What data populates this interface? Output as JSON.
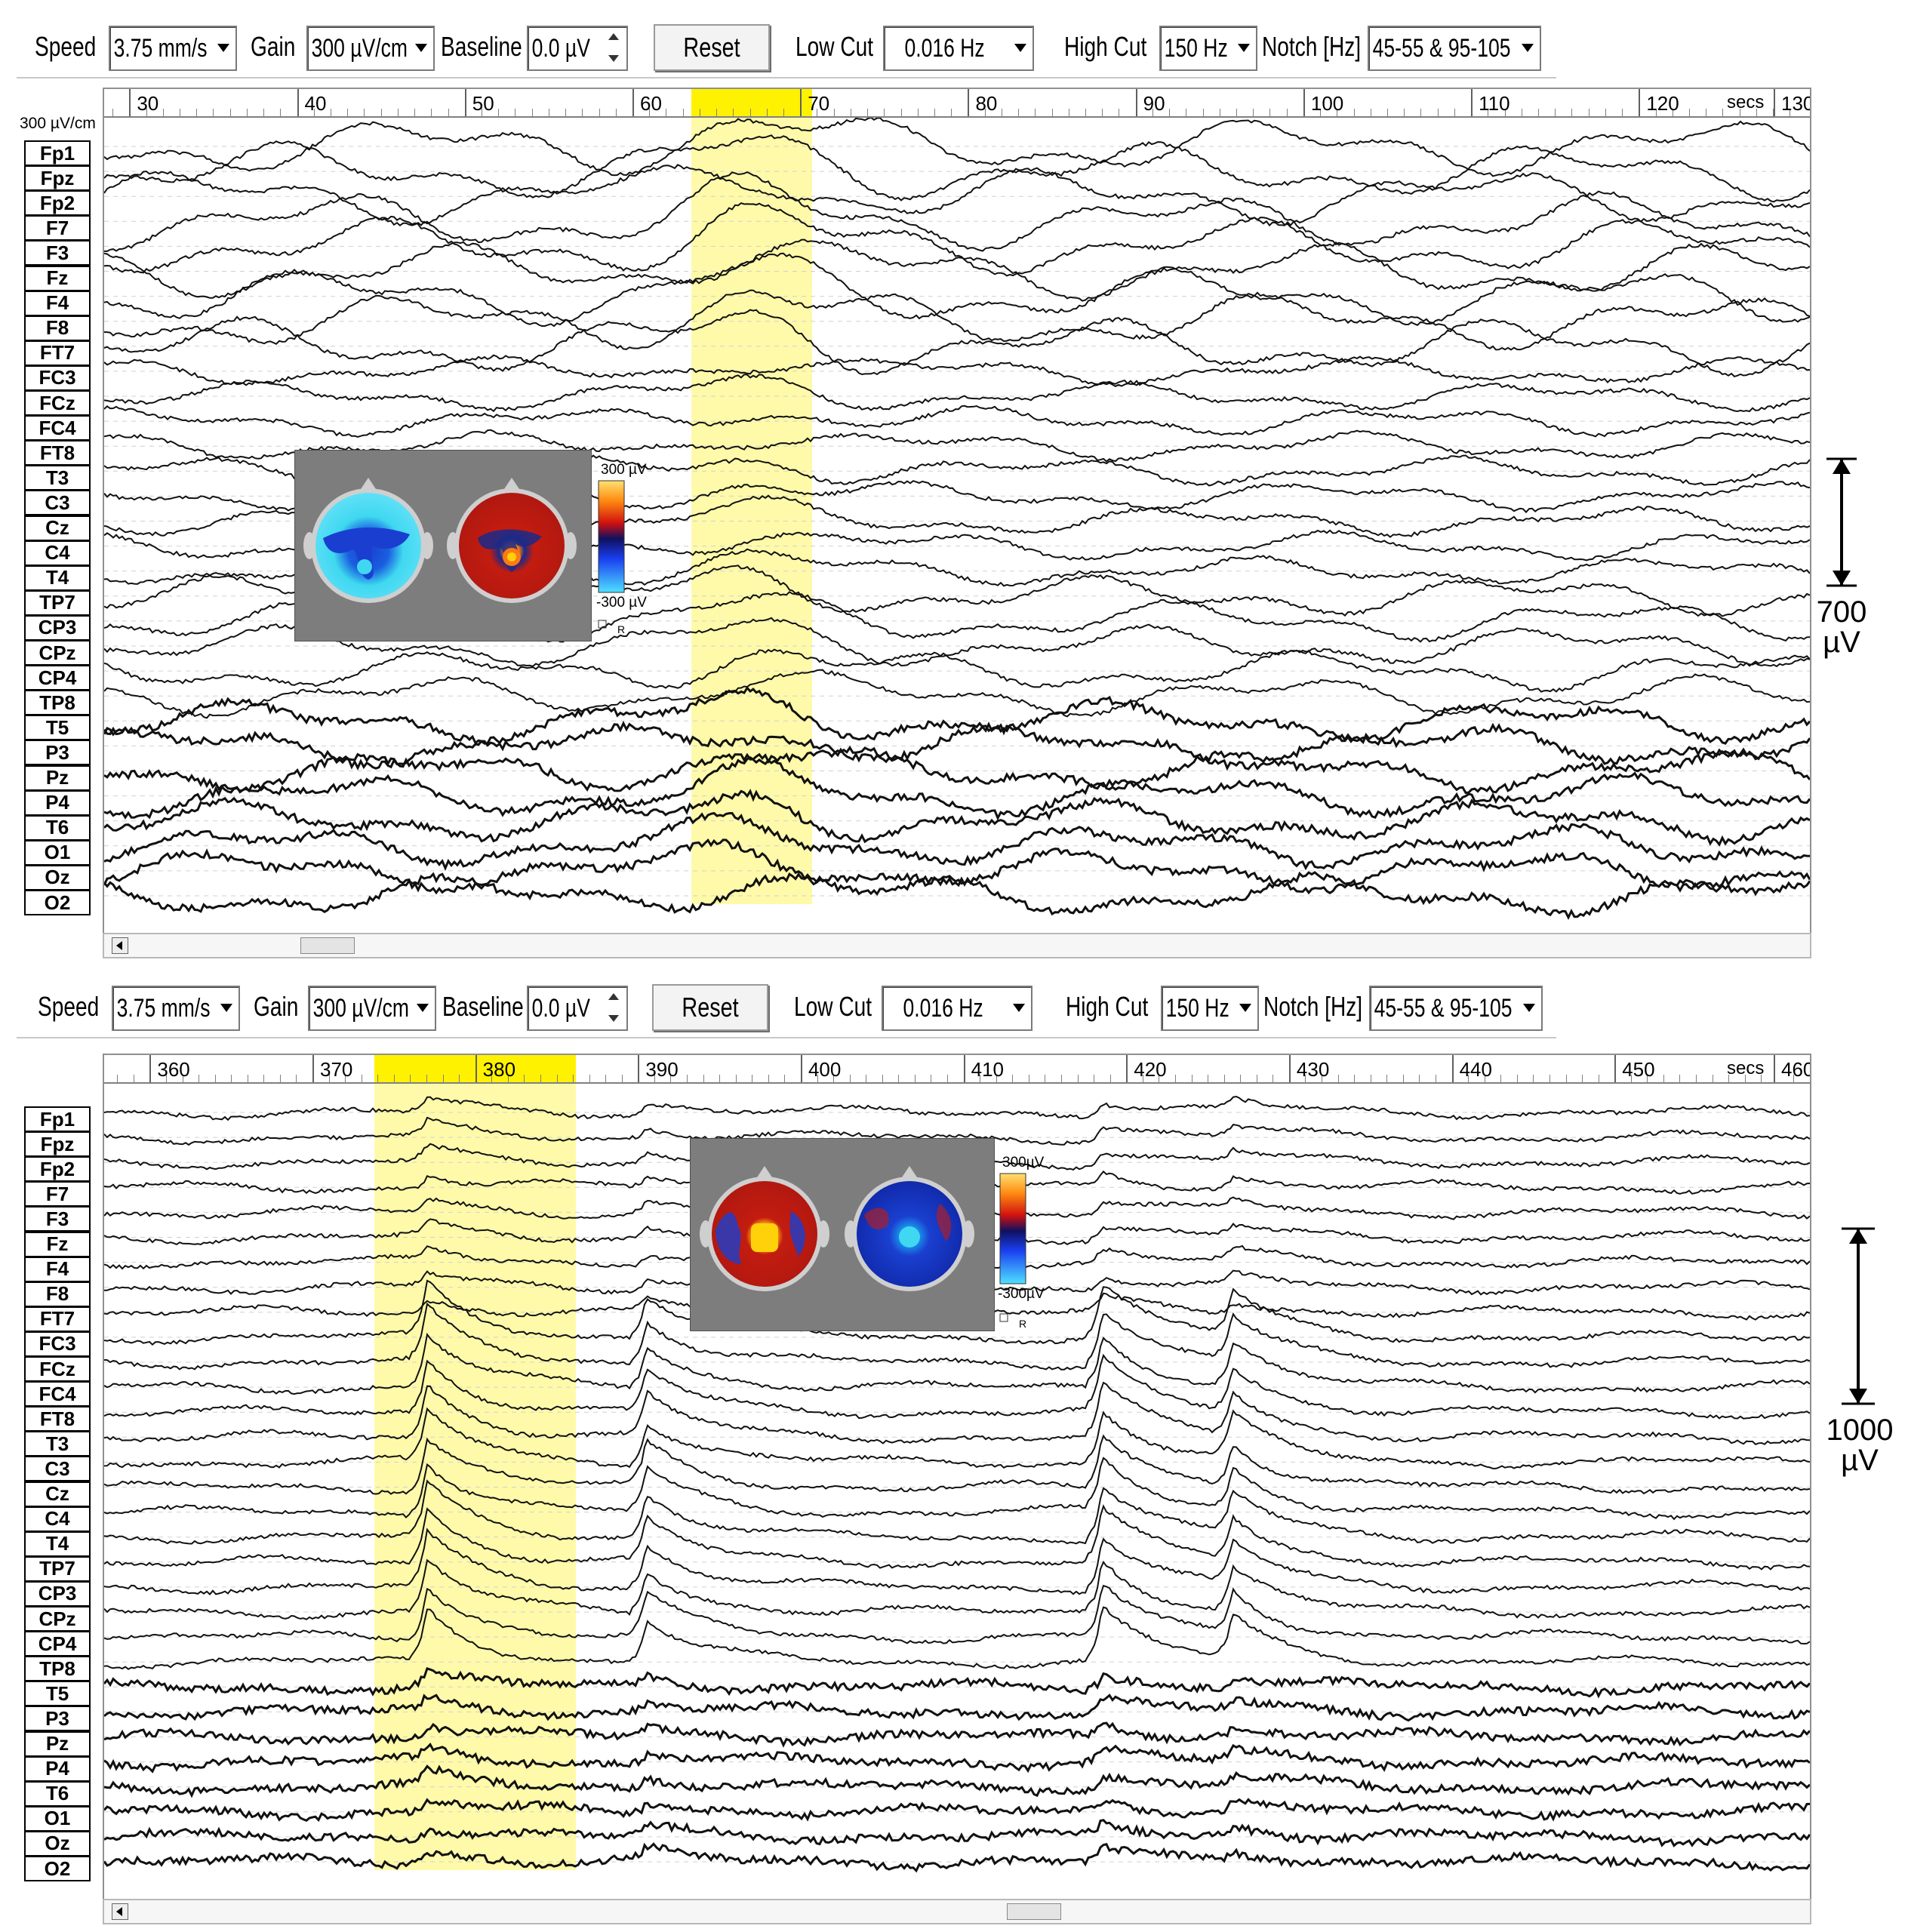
{
  "colors": {
    "highlight": "#fff59a",
    "topo_blue": "#1a3fd0",
    "topo_red": "#c31c10",
    "topo_cyan": "#3fd8f0",
    "topo_yellow": "#ffd10a",
    "inset_bg": "#7d7d7d",
    "trace": "#111111"
  },
  "channels": [
    "Fp1",
    "Fpz",
    "Fp2",
    "F7",
    "F3",
    "Fz",
    "F4",
    "F8",
    "FT7",
    "FC3",
    "FCz",
    "FC4",
    "FT8",
    "T3",
    "C3",
    "Cz",
    "C4",
    "T4",
    "TP7",
    "CP3",
    "CPz",
    "CP4",
    "TP8",
    "T5",
    "P3",
    "Pz",
    "P4",
    "T6",
    "O1",
    "Oz",
    "O2"
  ],
  "panels": [
    {
      "toolbar": {
        "speed_label": "Speed",
        "speed_value": "3.75 mm/s",
        "gain_label": "Gain",
        "gain_value": "300 µV/cm",
        "baseline_label": "Baseline",
        "baseline_value": "0.0 µV",
        "reset_label": "Reset",
        "lowcut_label": "Low Cut",
        "lowcut_value": "0.016 Hz",
        "highcut_label": "High Cut",
        "highcut_value": "150 Hz",
        "notch_label": "Notch [Hz]",
        "notch_value": "45-55 & 95-105"
      },
      "gain_label": "300 µV/cm",
      "time_axis": {
        "start": 28.5,
        "end": 130.2,
        "ticks": [
          "30",
          "40",
          "50",
          "60",
          "70",
          "80",
          "90",
          "100",
          "110",
          "120"
        ],
        "tick_values": [
          30,
          40,
          50,
          60,
          70,
          80,
          90,
          100,
          110,
          120
        ],
        "end_label": "130",
        "unit": "secs"
      },
      "highlight": {
        "start": 63.5,
        "end": 70.7
      },
      "topo": {
        "scale_max": "300 µV",
        "scale_min": "-300 µV",
        "checkbox_label": "R"
      },
      "scale_bar": {
        "value": "700",
        "unit": "µV"
      }
    },
    {
      "toolbar": {
        "speed_label": "Speed",
        "speed_value": "3.75 mm/s",
        "gain_label": "Gain",
        "gain_value": "300 µV/cm",
        "baseline_label": "Baseline",
        "baseline_value": "0.0 µV",
        "reset_label": "Reset",
        "lowcut_label": "Low Cut",
        "lowcut_value": "0.016 Hz",
        "highcut_label": "High Cut",
        "highcut_value": "150 Hz",
        "notch_label": "Notch [Hz]",
        "notch_value": "45-55 & 95-105"
      },
      "time_axis": {
        "start": 357.2,
        "end": 462.0,
        "ticks": [
          "360",
          "370",
          "380",
          "390",
          "400",
          "410",
          "420",
          "430",
          "440",
          "450"
        ],
        "tick_values": [
          360,
          370,
          380,
          390,
          400,
          410,
          420,
          430,
          440,
          450
        ],
        "end_label": "460",
        "unit": "secs"
      },
      "highlight": {
        "start": 373.8,
        "end": 386.2
      },
      "topo": {
        "scale_max": "300µV",
        "scale_min": "-300µV",
        "checkbox_label": "R"
      },
      "scale_bar": {
        "value": "1000",
        "unit": "µV"
      }
    }
  ]
}
